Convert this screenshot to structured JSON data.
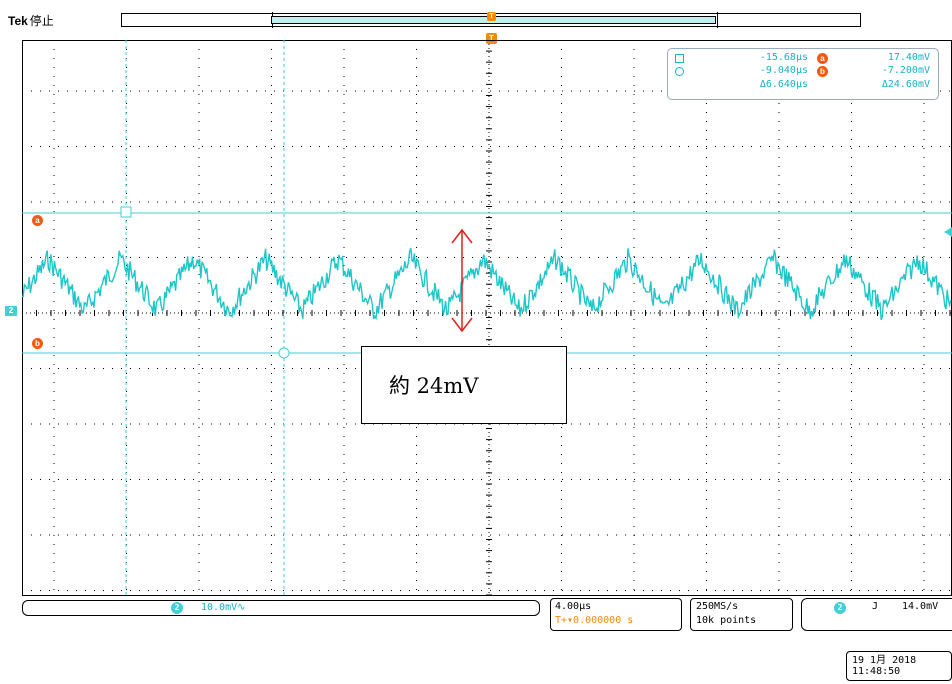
{
  "header": {
    "brand": "Tek",
    "state": "停止"
  },
  "colors": {
    "trace": "#1fc6c8",
    "cursor": "#42cfd6",
    "marker": "#f25a12",
    "trigger": "#f28a12",
    "grid": "#000000",
    "arrow": "#e02020"
  },
  "markers": {
    "trigger_top": "T",
    "trigger_sub": "T",
    "cursor_a": "a",
    "cursor_b": "b",
    "channel": "2"
  },
  "readout": {
    "time_a": "-15.68µs",
    "time_b": "-9.040µs",
    "time_delta": "Δ6.640µs",
    "volt_a_label": "a",
    "volt_a": "17.40mV",
    "volt_b_label": "b",
    "volt_b": "-7.200mV",
    "volt_delta": "Δ24.60mV"
  },
  "annotation": {
    "text": "約 24mV"
  },
  "channel_status": {
    "number": "2",
    "scale": "10.0mV∿"
  },
  "timebase": {
    "scale": "4.00µs",
    "position": "T+▾0.000000 s"
  },
  "acquisition": {
    "rate": "250MS/s",
    "points": "10k points"
  },
  "trigger": {
    "channel": "2",
    "slope": "J",
    "level": "14.0mV"
  },
  "datetime": {
    "date": "19 1月  2018",
    "time": "11:48:50"
  }
}
